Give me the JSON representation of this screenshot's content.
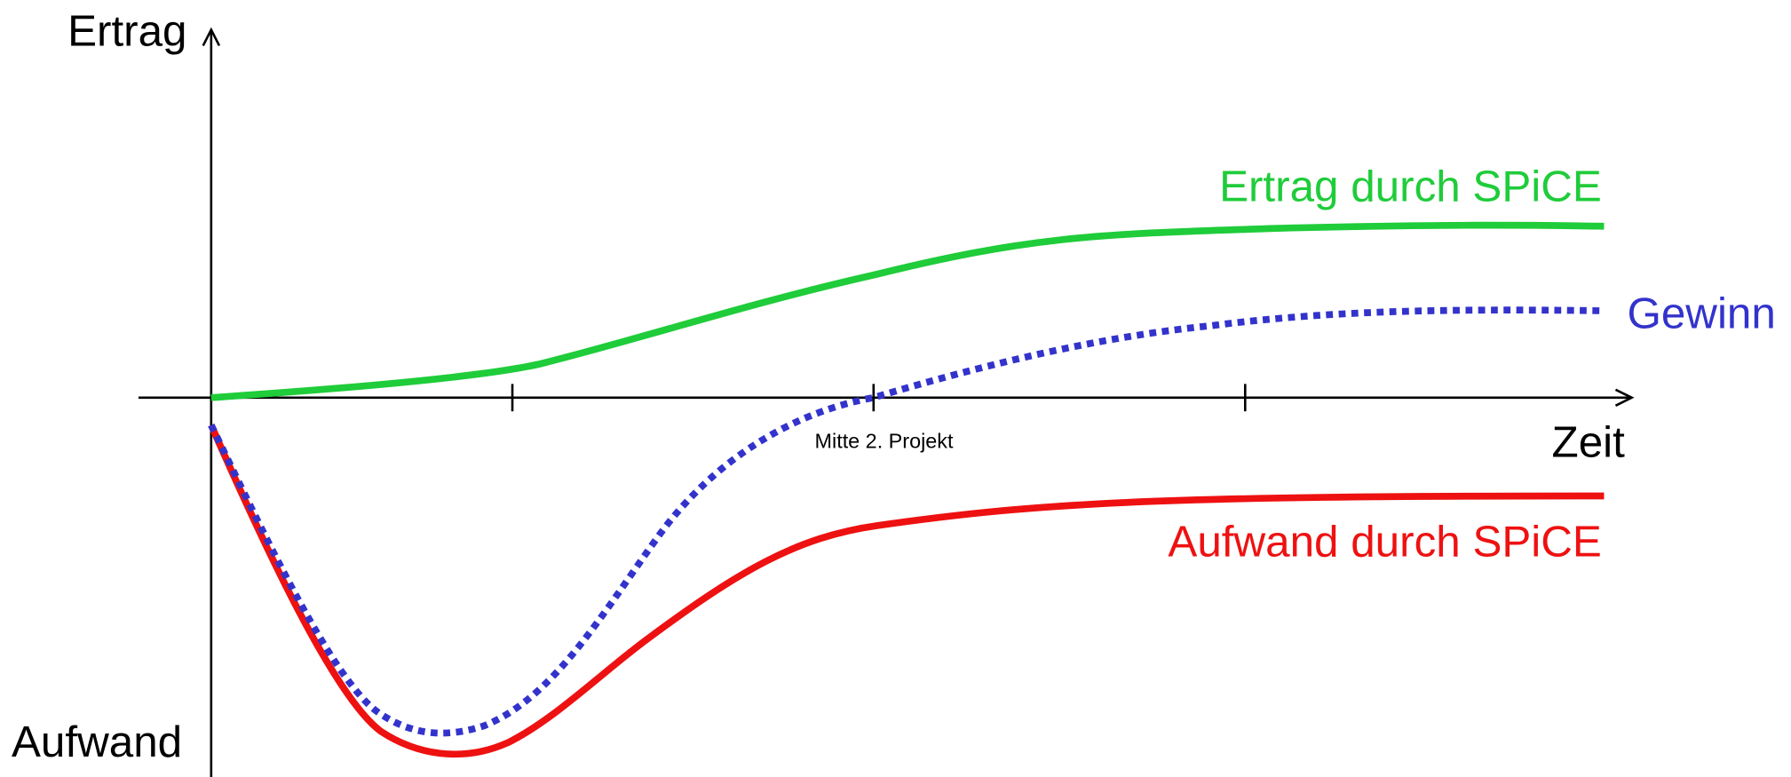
{
  "axes": {
    "y_top": "Ertrag",
    "y_bottom": "Aufwand",
    "x": "Zeit"
  },
  "annotations": {
    "tick": "Mitte 2. Projekt"
  },
  "curves": {
    "ertrag": "Ertrag durch SPiCE",
    "gewinn": "Gewinn",
    "aufwand": "Aufwand durch SPiCE"
  }
}
